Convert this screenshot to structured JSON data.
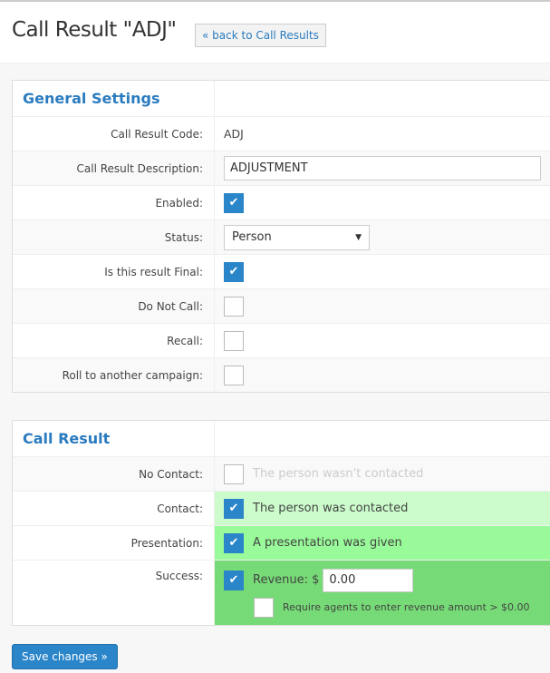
{
  "header": {
    "title": "Call Result \"ADJ\"",
    "back_label": "« back to Call Results"
  },
  "general": {
    "title": "General Settings",
    "code_label": "Call Result Code:",
    "code_value": "ADJ",
    "desc_label": "Call Result Description:",
    "desc_value": "ADJUSTMENT",
    "enabled_label": "Enabled:",
    "status_label": "Status:",
    "status_value": "Person",
    "final_label": "Is this result Final:",
    "dnc_label": "Do Not Call:",
    "recall_label": "Recall:",
    "roll_label": "Roll to another campaign:"
  },
  "callresult": {
    "title": "Call Result",
    "nocontact_label": "No Contact:",
    "nocontact_text": "The person wasn't contacted",
    "contact_label": "Contact:",
    "contact_text": "The person was contacted",
    "presentation_label": "Presentation:",
    "presentation_text": "A presentation was given",
    "success_label": "Success:",
    "revenue_label": "Revenue: $",
    "revenue_value": "0.00",
    "require_text": "Require agents to enter revenue amount > $0.00",
    "colors": {
      "contact": "#ccfccc",
      "presentation": "#99fa99",
      "success": "#76db76"
    }
  },
  "save_label": "Save changes »"
}
